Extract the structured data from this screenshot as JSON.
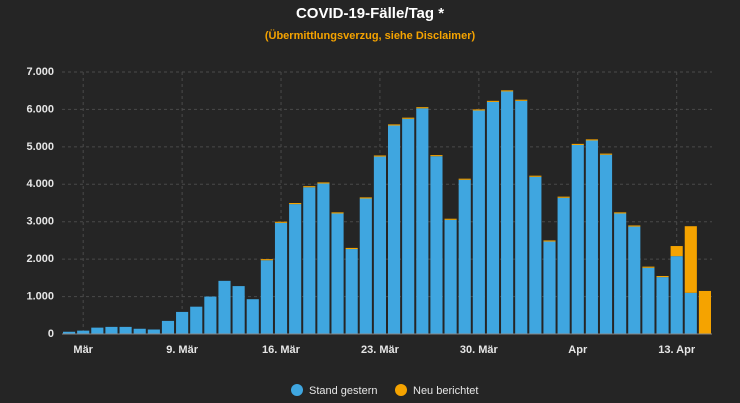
{
  "chart_data": {
    "type": "stacked-bar",
    "title": "COVID-19-Fälle/Tag *",
    "subtitle": "(Übermittlungsverzug, siehe Disclaimer)",
    "categories": [
      null,
      "Mär",
      null,
      null,
      null,
      null,
      null,
      null,
      "9. Mär",
      null,
      null,
      null,
      null,
      null,
      null,
      "16. Mär",
      null,
      null,
      null,
      null,
      null,
      null,
      "23. Mär",
      null,
      null,
      null,
      null,
      null,
      null,
      "30. Mär",
      null,
      null,
      null,
      null,
      null,
      null,
      "Apr",
      null,
      null,
      null,
      null,
      null,
      null,
      "13. Apr",
      null,
      null
    ],
    "series": [
      {
        "name": "Stand gestern",
        "color": "#3fa6e0",
        "values": [
          60,
          90,
          170,
          190,
          190,
          140,
          120,
          350,
          590,
          730,
          1000,
          1420,
          1280,
          930,
          1970,
          2970,
          3470,
          3920,
          4020,
          3220,
          2270,
          3620,
          4740,
          5570,
          5750,
          6030,
          4750,
          3050,
          4120,
          5970,
          6200,
          6480,
          6230,
          4200,
          2470,
          3640,
          5050,
          5170,
          4790,
          3220,
          2870,
          1770,
          1520,
          2080,
          1100,
          0
        ]
      },
      {
        "name": "Neu berichtet",
        "color": "#f5a300",
        "values": [
          0,
          0,
          0,
          0,
          0,
          0,
          0,
          0,
          0,
          0,
          0,
          0,
          0,
          0,
          30,
          30,
          30,
          30,
          30,
          30,
          30,
          30,
          30,
          30,
          30,
          30,
          30,
          30,
          30,
          30,
          30,
          30,
          30,
          30,
          30,
          30,
          30,
          30,
          30,
          30,
          30,
          30,
          30,
          270,
          1780,
          1150
        ]
      }
    ],
    "ylim": [
      0,
      7000
    ],
    "yticks": [
      0,
      {
        "value": 1000,
        "label": "1.000"
      },
      {
        "value": 2000,
        "label": "2.000"
      },
      {
        "value": 3000,
        "label": "3.000"
      },
      {
        "value": 4000,
        "label": "4.000"
      },
      {
        "value": 5000,
        "label": "5.000"
      },
      {
        "value": 6000,
        "label": "6.000"
      },
      {
        "value": 7000,
        "label": "7.000"
      }
    ],
    "grid": true,
    "legend": "bottom"
  }
}
